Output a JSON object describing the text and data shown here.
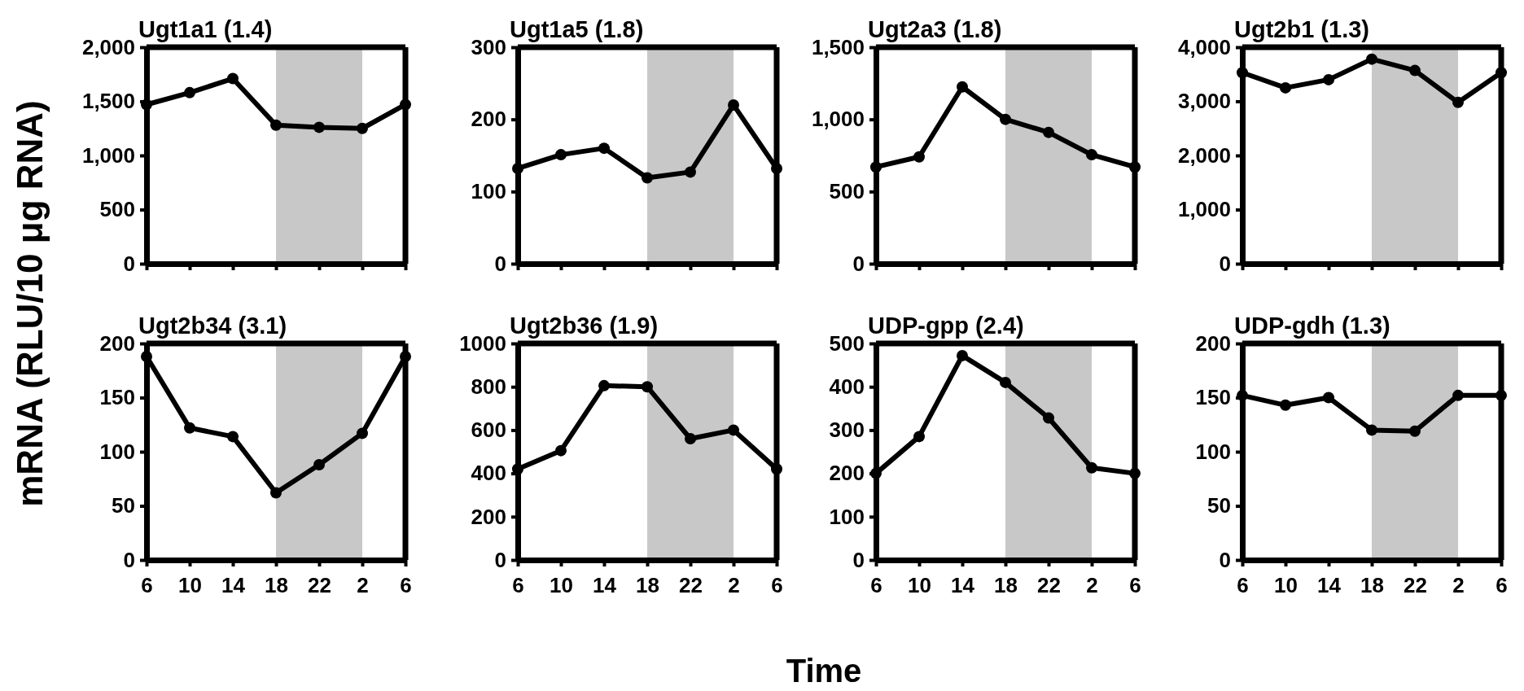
{
  "chart_data": [
    {
      "type": "line",
      "title": "Ugt1a1 (1.4)",
      "ylabel": "mRNA (RLU/10 μg RNA)",
      "categories": [
        "6",
        "10",
        "14",
        "18",
        "22",
        "2",
        "6"
      ],
      "ylim": [
        0,
        2000
      ],
      "yticks": [
        0,
        500,
        {
          "value": 1000,
          "label": "1,000"
        },
        {
          "value": 1500,
          "label": "1,500"
        },
        {
          "value": 2000,
          "label": "2,000"
        }
      ],
      "tick_labels": "y",
      "marker": "circle",
      "series": [
        {
          "color": "#000000",
          "values": [
            1470,
            1580,
            1710,
            1280,
            1260,
            1250,
            1470
          ]
        }
      ],
      "bands": [
        {
          "axis": "x",
          "from": "18",
          "to": "2",
          "color": "#c8c8c8"
        }
      ]
    },
    {
      "type": "line",
      "title": "Ugt1a5 (1.8)",
      "categories": [
        "6",
        "10",
        "14",
        "18",
        "22",
        "2",
        "6"
      ],
      "ylim": [
        0,
        300
      ],
      "yticks": [
        0,
        100,
        200,
        300
      ],
      "tick_labels": "y",
      "marker": "circle",
      "series": [
        {
          "color": "#000000",
          "values": [
            132,
            151,
            160,
            119,
            127,
            220,
            132
          ]
        }
      ],
      "bands": [
        {
          "axis": "x",
          "from": "18",
          "to": "2",
          "color": "#c8c8c8"
        }
      ]
    },
    {
      "type": "line",
      "title": "Ugt2a3 (1.8)",
      "categories": [
        "6",
        "10",
        "14",
        "18",
        "22",
        "2",
        "6"
      ],
      "ylim": [
        0,
        1500
      ],
      "yticks": [
        0,
        500,
        {
          "value": 1000,
          "label": "1,000"
        },
        {
          "value": 1500,
          "label": "1,500"
        }
      ],
      "tick_labels": "y",
      "marker": "circle",
      "series": [
        {
          "color": "#000000",
          "values": [
            670,
            740,
            1225,
            1000,
            910,
            755,
            670
          ]
        }
      ],
      "bands": [
        {
          "axis": "x",
          "from": "18",
          "to": "2",
          "color": "#c8c8c8"
        }
      ]
    },
    {
      "type": "line",
      "title": "Ugt2b1 (1.3)",
      "categories": [
        "6",
        "10",
        "14",
        "18",
        "22",
        "2",
        "6"
      ],
      "ylim": [
        0,
        4000
      ],
      "yticks": [
        0,
        {
          "value": 1000,
          "label": "1,000"
        },
        {
          "value": 2000,
          "label": "2,000"
        },
        {
          "value": 3000,
          "label": "3,000"
        },
        {
          "value": 4000,
          "label": "4,000"
        }
      ],
      "tick_labels": "y",
      "marker": "circle",
      "series": [
        {
          "color": "#000000",
          "values": [
            3530,
            3250,
            3400,
            3780,
            3570,
            2980,
            3530
          ]
        }
      ],
      "bands": [
        {
          "axis": "x",
          "from": "18",
          "to": "2",
          "color": "#c8c8c8"
        }
      ]
    },
    {
      "type": "line",
      "title": "Ugt2b34 (3.1)",
      "categories": [
        "6",
        "10",
        "14",
        "18",
        "22",
        "2",
        "6"
      ],
      "ylim": [
        0,
        200
      ],
      "yticks": [
        0,
        50,
        100,
        150,
        200
      ],
      "marker": "circle",
      "series": [
        {
          "color": "#000000",
          "values": [
            188,
            122,
            114,
            62,
            88,
            117,
            188
          ]
        }
      ],
      "bands": [
        {
          "axis": "x",
          "from": "18",
          "to": "2",
          "color": "#c8c8c8"
        }
      ]
    },
    {
      "type": "line",
      "title": "Ugt2b36 (1.9)",
      "xlabel": "Time",
      "categories": [
        "6",
        "10",
        "14",
        "18",
        "22",
        "2",
        "6"
      ],
      "ylim": [
        0,
        1000
      ],
      "yticks": [
        0,
        200,
        400,
        600,
        800,
        1000
      ],
      "marker": "circle",
      "series": [
        {
          "color": "#000000",
          "values": [
            420,
            505,
            805,
            800,
            560,
            600,
            420
          ]
        }
      ],
      "bands": [
        {
          "axis": "x",
          "from": "18",
          "to": "2",
          "color": "#c8c8c8"
        }
      ]
    },
    {
      "type": "line",
      "title": "UDP-gpp (2.4)",
      "categories": [
        "6",
        "10",
        "14",
        "18",
        "22",
        "2",
        "6"
      ],
      "ylim": [
        0,
        500
      ],
      "yticks": [
        0,
        100,
        200,
        300,
        400,
        500
      ],
      "marker": "circle",
      "series": [
        {
          "color": "#000000",
          "values": [
            200,
            285,
            472,
            410,
            328,
            213,
            200
          ]
        }
      ],
      "bands": [
        {
          "axis": "x",
          "from": "18",
          "to": "2",
          "color": "#c8c8c8"
        }
      ]
    },
    {
      "type": "line",
      "title": "UDP-gdh (1.3)",
      "categories": [
        "6",
        "10",
        "14",
        "18",
        "22",
        "2",
        "6"
      ],
      "ylim": [
        0,
        200
      ],
      "yticks": [
        0,
        50,
        100,
        150,
        200
      ],
      "marker": "circle",
      "series": [
        {
          "color": "#000000",
          "values": [
            152,
            143,
            150,
            120,
            119,
            152,
            152
          ]
        }
      ],
      "bands": [
        {
          "axis": "x",
          "from": "18",
          "to": "2",
          "color": "#c8c8c8"
        }
      ]
    }
  ]
}
